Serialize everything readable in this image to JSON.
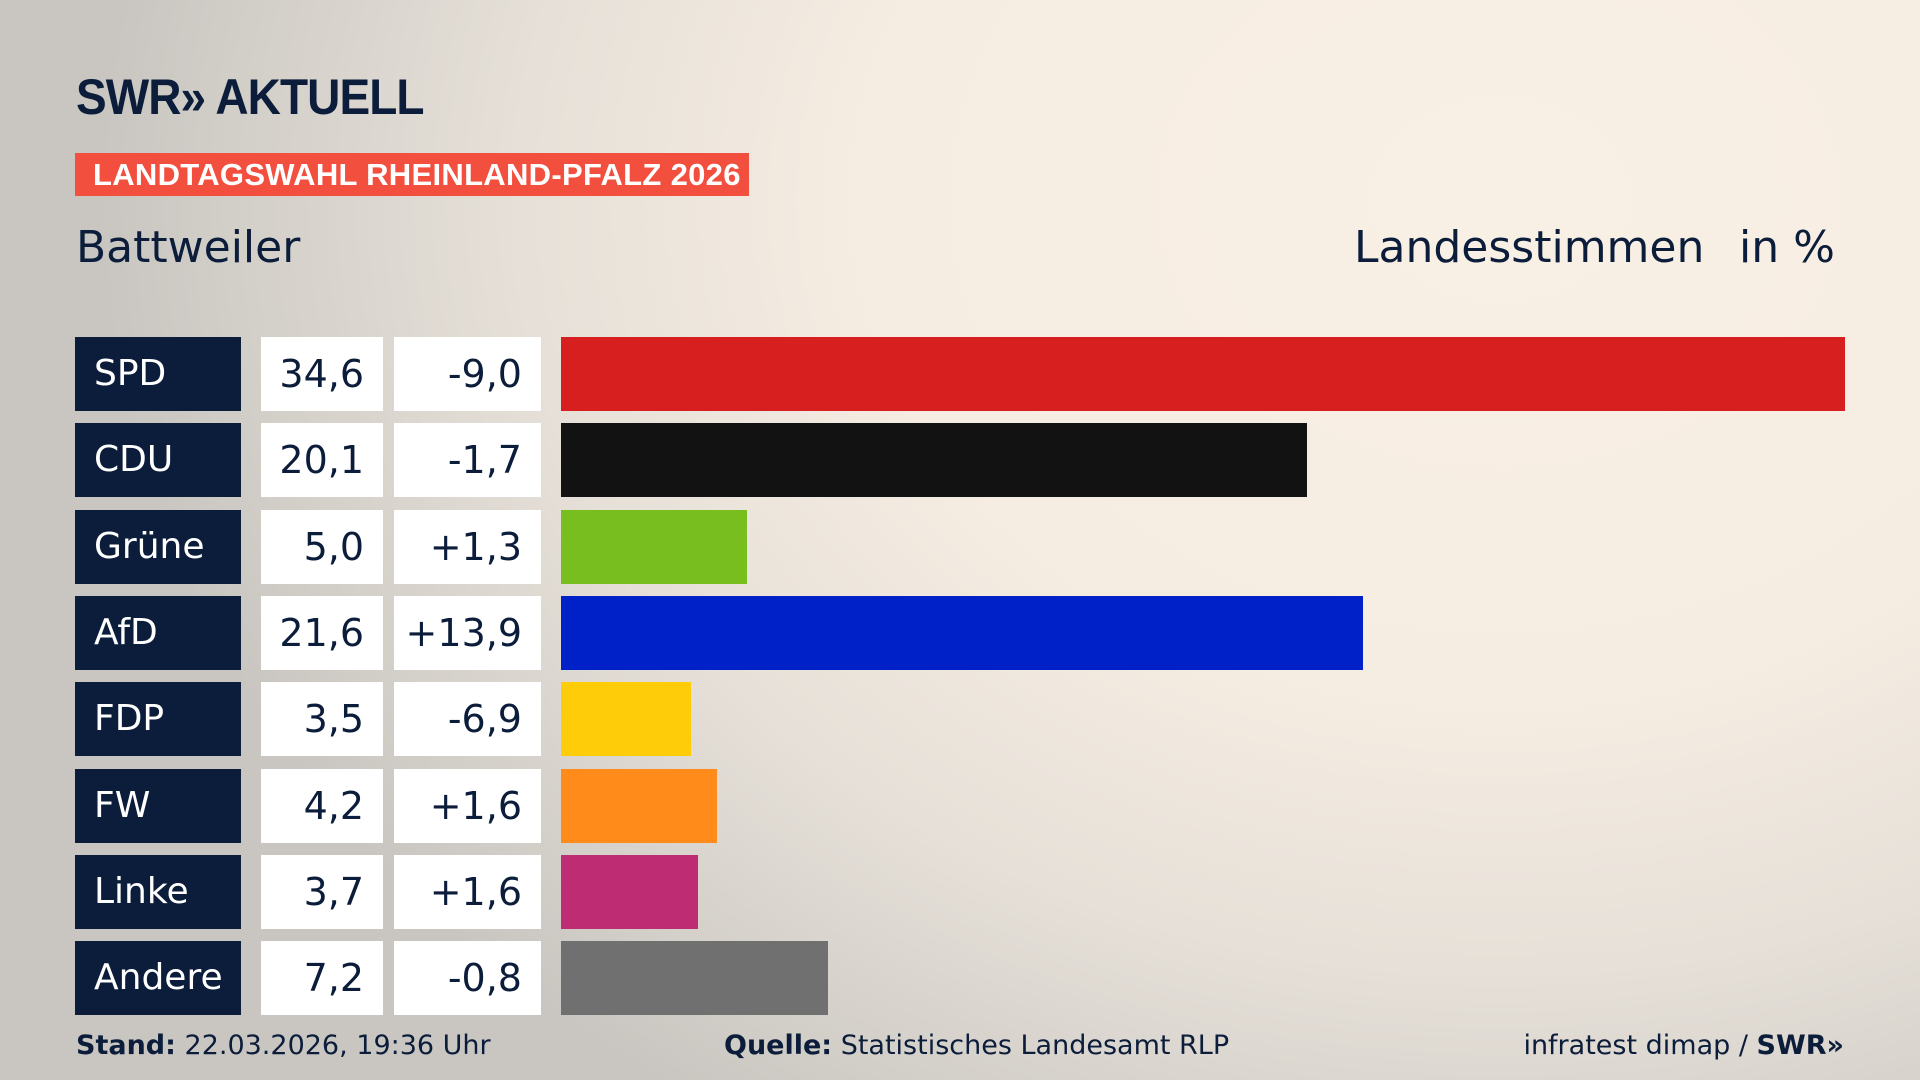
{
  "header": {
    "logo": "SWR» AKTUELL",
    "banner": "LANDTAGSWAHL RHEINLAND-PFALZ 2026",
    "region": "Battweiler",
    "metric": "Landesstimmen",
    "unit": "in %"
  },
  "chart_data": {
    "type": "bar",
    "orientation": "horizontal",
    "categories": [
      "SPD",
      "CDU",
      "Grüne",
      "AfD",
      "FDP",
      "FW",
      "Linke",
      "Andere"
    ],
    "values": [
      34.6,
      20.1,
      5.0,
      21.6,
      3.5,
      4.2,
      3.7,
      7.2
    ],
    "value_labels": [
      "34,6",
      "20,1",
      "5,0",
      "21,6",
      "3,5",
      "4,2",
      "3,7",
      "7,2"
    ],
    "changes": [
      -9.0,
      -1.7,
      1.3,
      13.9,
      -6.9,
      1.6,
      1.6,
      -0.8
    ],
    "change_labels": [
      "-9,0",
      "-1,7",
      "+1,3",
      "+13,9",
      "-6,9",
      "+1,6",
      "+1,6",
      "-0,8"
    ],
    "colors": [
      "#d71f1f",
      "#121212",
      "#78be1e",
      "#0021c8",
      "#ffcc0a",
      "#ff8c1a",
      "#be2d73",
      "#707070"
    ],
    "xlim": [
      0,
      34.6
    ],
    "grid": false
  },
  "footer": {
    "stand_label": "Stand:",
    "stand_value": "22.03.2026, 19:36 Uhr",
    "source_label": "Quelle:",
    "source_value": "Statistisches Landesamt RLP",
    "credit": "infratest dimap / ",
    "credit_logo": "SWR»"
  }
}
